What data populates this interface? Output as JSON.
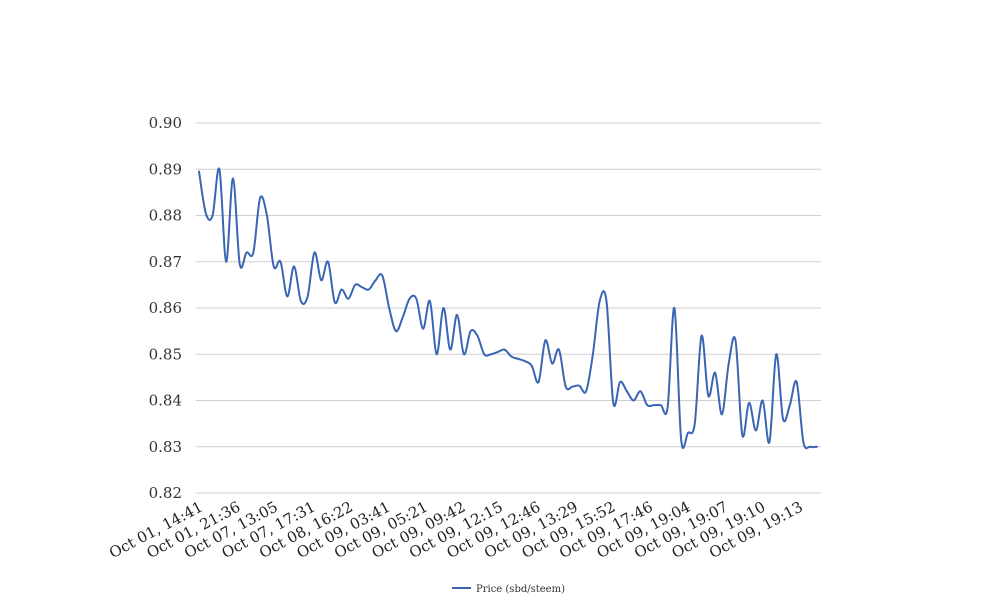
{
  "chart_data": {
    "type": "line",
    "title": "",
    "xlabel": "",
    "ylabel": "",
    "ylim": [
      0.82,
      0.9
    ],
    "yticks": [
      "0.90",
      "0.89",
      "0.88",
      "0.87",
      "0.86",
      "0.85",
      "0.84",
      "0.83",
      "0.82"
    ],
    "xtick_labels": [
      "Oct 01, 14:41",
      "Oct 01, 21:36",
      "Oct 07, 13:05",
      "Oct 07, 17:31",
      "Oct 08, 16:22",
      "Oct 09, 03:41",
      "Oct 09, 05:21",
      "Oct 09, 09:42",
      "Oct 09, 12:15",
      "Oct 09, 12:46",
      "Oct 09, 13:29",
      "Oct 09, 15:52",
      "Oct 09, 17:46",
      "Oct 09, 19:04",
      "Oct 09, 19:07",
      "Oct 09, 19:10",
      "Oct 09, 19:13"
    ],
    "grid": true,
    "legend_position": "bottom",
    "color": "#3a65b3",
    "series": [
      {
        "name": "Price (sbd/steem)",
        "values": [
          0.8895,
          0.8805,
          0.88,
          0.89,
          0.87,
          0.888,
          0.8695,
          0.872,
          0.872,
          0.8838,
          0.88,
          0.869,
          0.87,
          0.8625,
          0.869,
          0.8615,
          0.8625,
          0.872,
          0.866,
          0.87,
          0.8612,
          0.864,
          0.862,
          0.865,
          0.8645,
          0.864,
          0.866,
          0.867,
          0.86,
          0.855,
          0.858,
          0.862,
          0.862,
          0.8555,
          0.8615,
          0.85,
          0.86,
          0.851,
          0.8585,
          0.85,
          0.855,
          0.854,
          0.85,
          0.85,
          0.8505,
          0.851,
          0.8495,
          0.849,
          0.8485,
          0.8475,
          0.844,
          0.853,
          0.848,
          0.851,
          0.843,
          0.843,
          0.8432,
          0.842,
          0.85,
          0.8615,
          0.8615,
          0.8395,
          0.844,
          0.842,
          0.84,
          0.842,
          0.839,
          0.839,
          0.839,
          0.8385,
          0.86,
          0.8315,
          0.833,
          0.835,
          0.854,
          0.841,
          0.846,
          0.837,
          0.848,
          0.853,
          0.8325,
          0.8395,
          0.8335,
          0.84,
          0.831,
          0.85,
          0.836,
          0.839,
          0.844,
          0.831,
          0.83,
          0.83
        ]
      }
    ]
  }
}
